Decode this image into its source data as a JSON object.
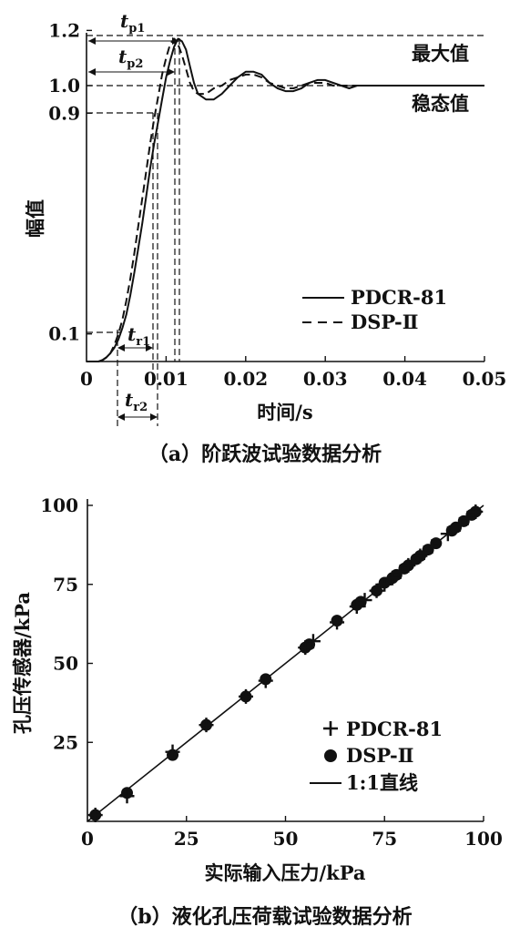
{
  "chart_data": [
    {
      "type": "line",
      "xlabel": "时间/s",
      "ylabel": "幅值",
      "xlim": [
        0,
        0.05
      ],
      "ylim": [
        0.0,
        1.2
      ],
      "x_ticks": [
        "0",
        "0.01",
        "0.02",
        "0.03",
        "0.04",
        "0.05"
      ],
      "y_ticks": [
        "0.1",
        "0.9",
        "1.0",
        "1.2"
      ],
      "annotations": {
        "max_label": "最大值",
        "steady_label": "稳态值",
        "tp1": {
          "t": "t",
          "sub": "p1"
        },
        "tp2": {
          "t": "t",
          "sub": "p2"
        },
        "tr1": {
          "t": "t",
          "sub": "r1"
        },
        "tr2": {
          "t": "t",
          "sub": "r2"
        }
      },
      "legend": [
        "PDCR-81",
        "DSP-Ⅱ"
      ],
      "legend_position": "right",
      "series": [
        {
          "name": "PDCR-81",
          "style": "solid",
          "x": [
            0,
            0.0005,
            0.001,
            0.0015,
            0.002,
            0.0025,
            0.003,
            0.0035,
            0.004,
            0.0045,
            0.005,
            0.0055,
            0.006,
            0.0065,
            0.007,
            0.0075,
            0.008,
            0.0085,
            0.009,
            0.0095,
            0.01,
            0.0105,
            0.011,
            0.0115,
            0.012,
            0.0125,
            0.013,
            0.0135,
            0.014,
            0.015,
            0.016,
            0.017,
            0.018,
            0.019,
            0.02,
            0.021,
            0.022,
            0.023,
            0.024,
            0.025,
            0.026,
            0.027,
            0.028,
            0.029,
            0.03,
            0.031,
            0.032,
            0.033,
            0.034,
            0.035,
            0.037,
            0.04,
            0.045,
            0.05
          ],
          "y": [
            0.0,
            0.0,
            0.0,
            0.0,
            0.005,
            0.015,
            0.03,
            0.05,
            0.08,
            0.12,
            0.17,
            0.24,
            0.32,
            0.41,
            0.5,
            0.6,
            0.7,
            0.79,
            0.87,
            0.95,
            1.03,
            1.09,
            1.14,
            1.17,
            1.16,
            1.13,
            1.07,
            1.01,
            0.97,
            0.95,
            0.95,
            0.97,
            1.0,
            1.03,
            1.05,
            1.05,
            1.04,
            1.01,
            0.99,
            0.98,
            0.98,
            0.99,
            1.01,
            1.02,
            1.02,
            1.01,
            1.0,
            0.99,
            1.0,
            1.0,
            1.0,
            1.0,
            1.0,
            1.0
          ]
        },
        {
          "name": "DSP-Ⅱ",
          "style": "dashed",
          "x": [
            0,
            0.0005,
            0.001,
            0.0015,
            0.002,
            0.0025,
            0.003,
            0.0035,
            0.004,
            0.0045,
            0.005,
            0.0055,
            0.006,
            0.0065,
            0.007,
            0.0075,
            0.008,
            0.0085,
            0.009,
            0.0095,
            0.01,
            0.0105,
            0.011,
            0.0115,
            0.012,
            0.0125,
            0.013,
            0.0135,
            0.014,
            0.015,
            0.016,
            0.017,
            0.018,
            0.019,
            0.02,
            0.021,
            0.022,
            0.023,
            0.024,
            0.025,
            0.026,
            0.027,
            0.028,
            0.029,
            0.03,
            0.031,
            0.032,
            0.033,
            0.034,
            0.035,
            0.037,
            0.04,
            0.045,
            0.05
          ],
          "y": [
            0.0,
            0.0,
            0.0,
            0.0,
            0.005,
            0.015,
            0.03,
            0.06,
            0.1,
            0.15,
            0.22,
            0.3,
            0.39,
            0.49,
            0.59,
            0.69,
            0.79,
            0.88,
            0.96,
            1.04,
            1.1,
            1.15,
            1.17,
            1.15,
            1.11,
            1.06,
            1.01,
            0.98,
            0.97,
            0.97,
            0.99,
            1.0,
            1.02,
            1.03,
            1.04,
            1.04,
            1.03,
            1.01,
            1.0,
            0.99,
            0.99,
            1.0,
            1.01,
            1.01,
            1.01,
            1.0,
            1.0,
            1.0,
            1.0,
            1.0,
            1.0,
            1.0,
            1.0,
            1.0
          ]
        }
      ],
      "caption": "（a）阶跃波试验数据分析"
    },
    {
      "type": "scatter",
      "xlabel": "实际输入压力/kPa",
      "ylabel": "孔压传感器/kPa",
      "xlim": [
        0,
        100
      ],
      "ylim": [
        0,
        100
      ],
      "x_ticks": [
        "0",
        "25",
        "50",
        "75",
        "100"
      ],
      "y_ticks": [
        "25",
        "50",
        "75",
        "100"
      ],
      "legend": [
        "PDCR-81",
        "DSP-Ⅱ",
        "1:1直线"
      ],
      "legend_position": "bottom-right",
      "series": [
        {
          "name": "PDCR-81",
          "marker": "plus",
          "x": [
            2,
            10,
            21.5,
            30,
            40,
            45,
            55,
            57,
            63,
            68,
            70,
            73,
            75,
            77,
            79,
            81,
            84,
            85,
            87,
            91,
            94,
            96,
            98
          ],
          "y": [
            2,
            8,
            22,
            30.5,
            39.5,
            44.5,
            55,
            57,
            63,
            68,
            70,
            73,
            75,
            77,
            79,
            81,
            84,
            85,
            87,
            91,
            94,
            96,
            98
          ]
        },
        {
          "name": "DSP-Ⅱ",
          "marker": "circle",
          "x": [
            2,
            10,
            21.5,
            30,
            40,
            45,
            55,
            56,
            63,
            68,
            69,
            73,
            75,
            77,
            78,
            80,
            81,
            83,
            84,
            86,
            88,
            92,
            93,
            95,
            97,
            98
          ],
          "y": [
            2,
            9,
            21,
            30.5,
            39.5,
            45,
            55,
            56,
            63.5,
            68.5,
            69.5,
            73,
            75.5,
            77,
            78,
            80,
            81,
            83,
            84,
            86,
            88,
            92,
            93,
            95,
            97,
            98
          ]
        },
        {
          "name": "1:1直线",
          "marker": "line",
          "x": [
            0,
            100
          ],
          "y": [
            0,
            100
          ]
        }
      ],
      "caption": "（b）液化孔压荷载试验数据分析"
    }
  ]
}
